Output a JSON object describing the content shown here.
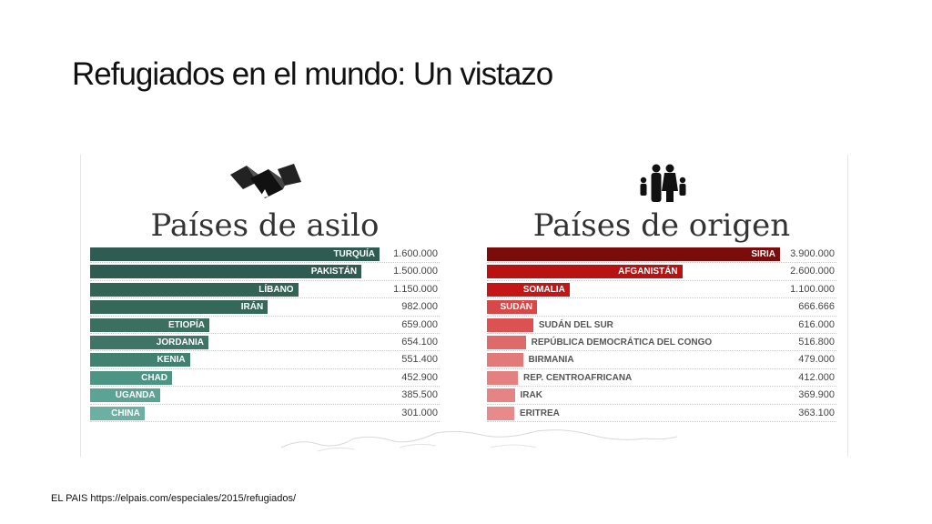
{
  "slide": {
    "title": "Refugiados en el mundo:  Un vistazo",
    "source": "EL PAIS  https://elpais.com/especiales/2015/refugiados/"
  },
  "icons": {
    "asylum": "tents-icon",
    "origin": "family-icon"
  },
  "colors": {
    "asylum_dark": "#2f5c52",
    "asylum_mid": "#3e7a6b",
    "asylum_light": "#5ba392",
    "origin_dark": "#7a0c0c",
    "origin_mid": "#c01515",
    "origin_light": "#e58a8a"
  },
  "chart_data": [
    {
      "type": "bar",
      "orientation": "horizontal",
      "title": "Países de asilo",
      "categories": [
        "TURQUÍA",
        "PAKISTÁN",
        "LÍBANO",
        "IRÁN",
        "ETIOPÍA",
        "JORDANIA",
        "KENIA",
        "CHAD",
        "UGANDA",
        "CHINA"
      ],
      "values": [
        1600000,
        1500000,
        1150000,
        982000,
        659000,
        654100,
        551400,
        452900,
        385500,
        301000
      ],
      "value_labels": [
        "1.600.000",
        "1.500.000",
        "1.150.000",
        "982.000",
        "659.000",
        "654.100",
        "551.400",
        "452.900",
        "385.500",
        "301.000"
      ],
      "xlim": [
        0,
        1620000
      ],
      "bar_colors": [
        "#2f5c52",
        "#2f5c52",
        "#336355",
        "#366859",
        "#3b6f5f",
        "#3e7566",
        "#42806f",
        "#4c9483",
        "#5aa395",
        "#6bb0a3"
      ]
    },
    {
      "type": "bar",
      "orientation": "horizontal",
      "title": "Países de origen",
      "categories": [
        "SIRIA",
        "AFGANISTÁN",
        "SOMALIA",
        "SUDÁN",
        "SUDÁN DEL SUR",
        "REPÚBLICA DEMOCRÁTICA DEL CONGO",
        "BIRMANIA",
        "REP. CENTROAFRICANA",
        "IRAK",
        "ERITREA"
      ],
      "values": [
        3900000,
        2600000,
        1100000,
        666666,
        616000,
        516800,
        479000,
        412000,
        369900,
        363100
      ],
      "value_labels": [
        "3.900.000",
        "2.600.000",
        "1.100.000",
        "666.666",
        "616.000",
        "516.800",
        "479.000",
        "412.000",
        "369.900",
        "363.100"
      ],
      "xlim": [
        0,
        3900000
      ],
      "bar_colors": [
        "#7a0c0c",
        "#b81212",
        "#c41616",
        "#d84848",
        "#dc5252",
        "#df6a6a",
        "#e27a7a",
        "#e58080",
        "#e68484",
        "#e88a8a"
      ]
    }
  ]
}
